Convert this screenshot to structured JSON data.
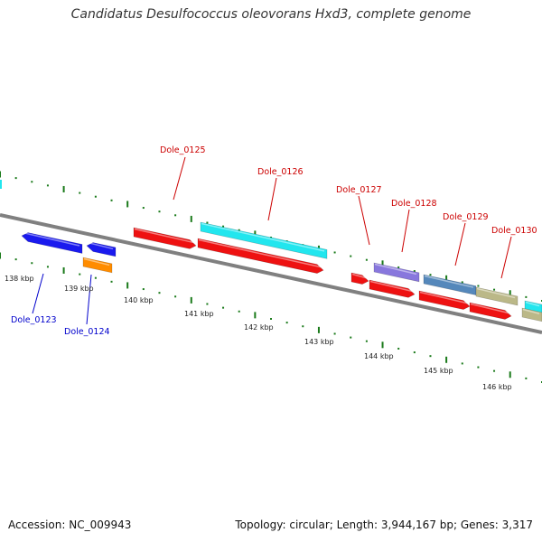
{
  "title": "Candidatus Desulfococcus oleovorans Hxd3, complete genome",
  "footer": {
    "accession": "Accession: NC_009943",
    "topology": "Topology: circular; Length: 3,944,167 bp; Genes: 3,317"
  },
  "colors": {
    "backbone": "#808080",
    "tick": "#1a7a1a",
    "label_top": "#cc0000",
    "label_bottom": "#0000cc"
  },
  "scale": {
    "kbp_labels": [
      "138 kbp",
      "139 kbp",
      "140 kbp",
      "141 kbp",
      "142 kbp",
      "143 kbp",
      "144 kbp",
      "145 kbp",
      "146 kbp"
    ]
  },
  "gene_labels": {
    "top": [
      "Dole_0125",
      "Dole_0126",
      "Dole_0127",
      "Dole_0128",
      "Dole_0129",
      "Dole_0130"
    ],
    "bottom": [
      "Dole_0123",
      "Dole_0124"
    ]
  },
  "features": [
    {
      "color": "#1a1aee",
      "strand": "reverse"
    },
    {
      "color": "#1a1aee",
      "strand": "reverse"
    },
    {
      "color": "#ff8c00",
      "strand": "none"
    },
    {
      "color": "#ee1111",
      "strand": "forward"
    },
    {
      "color": "#22e6ee",
      "strand": "none"
    },
    {
      "color": "#ee1111",
      "strand": "forward"
    },
    {
      "color": "#ee1111",
      "strand": "forward"
    },
    {
      "color": "#8877dd",
      "strand": "none"
    },
    {
      "color": "#ee1111",
      "strand": "forward"
    },
    {
      "color": "#5588bb",
      "strand": "none"
    },
    {
      "color": "#ee1111",
      "strand": "forward"
    },
    {
      "color": "#bbb888",
      "strand": "none"
    },
    {
      "color": "#ee1111",
      "strand": "forward"
    },
    {
      "color": "#22e6ee",
      "strand": "none"
    },
    {
      "color": "#bbb888",
      "strand": "none"
    }
  ]
}
